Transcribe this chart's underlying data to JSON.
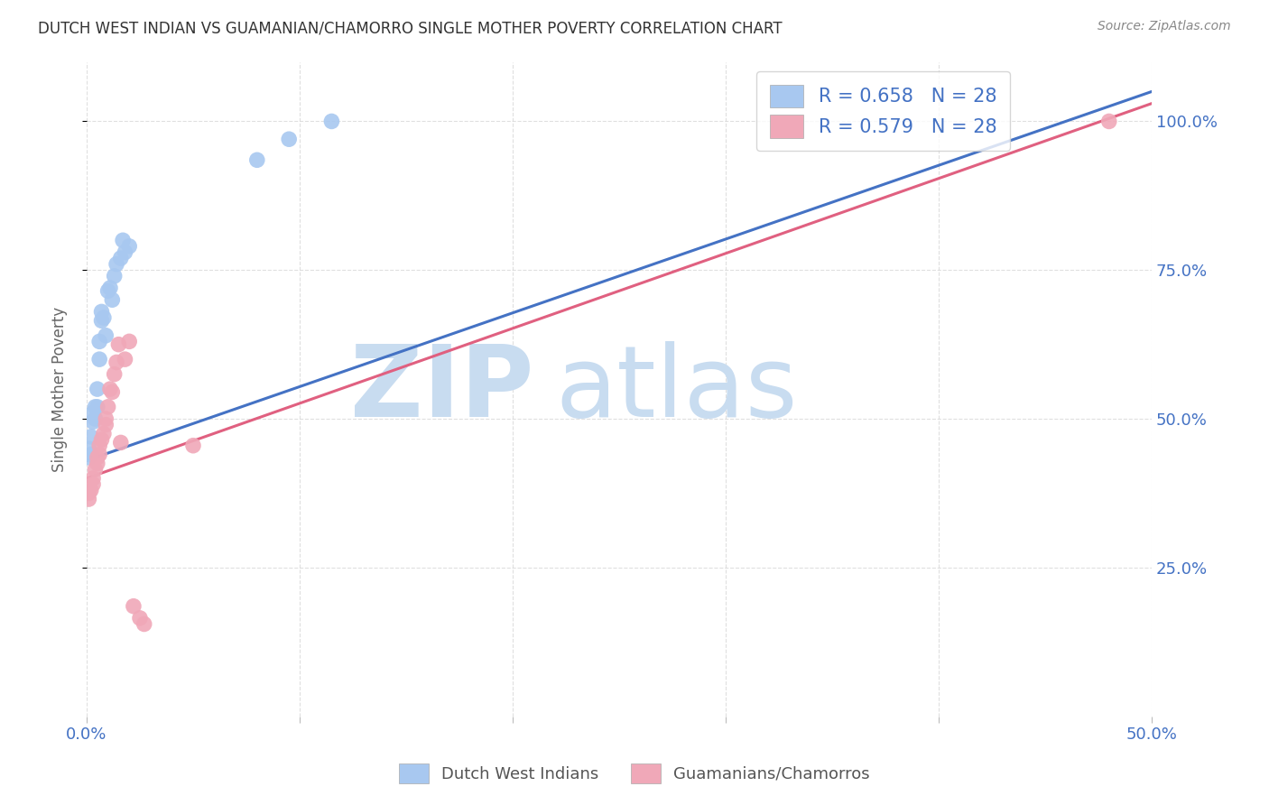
{
  "title": "DUTCH WEST INDIAN VS GUAMANIAN/CHAMORRO SINGLE MOTHER POVERTY CORRELATION CHART",
  "source": "Source: ZipAtlas.com",
  "ylabel": "Single Mother Poverty",
  "xlim": [
    0.0,
    0.5
  ],
  "ylim": [
    0.0,
    1.1
  ],
  "xtick_positions": [
    0.0,
    0.1,
    0.2,
    0.3,
    0.4,
    0.5
  ],
  "xticklabels": [
    "0.0%",
    "",
    "",
    "",
    "",
    "50.0%"
  ],
  "ytick_right_positions": [
    0.25,
    0.5,
    0.75,
    1.0
  ],
  "ytick_right_labels": [
    "25.0%",
    "50.0%",
    "75.0%",
    "100.0%"
  ],
  "blue_r": "0.658",
  "blue_n": "28",
  "pink_r": "0.579",
  "pink_n": "28",
  "blue_dot_color": "#A8C8F0",
  "pink_dot_color": "#F0A8B8",
  "blue_line_color": "#4472C4",
  "pink_line_color": "#E06080",
  "legend_label_blue": "Dutch West Indians",
  "legend_label_pink": "Guamanians/Chamorros",
  "blue_x": [
    0.001,
    0.001,
    0.002,
    0.002,
    0.003,
    0.003,
    0.004,
    0.004,
    0.005,
    0.005,
    0.006,
    0.006,
    0.007,
    0.007,
    0.008,
    0.009,
    0.01,
    0.011,
    0.012,
    0.013,
    0.014,
    0.016,
    0.017,
    0.018,
    0.02,
    0.08,
    0.095,
    0.115
  ],
  "blue_y": [
    0.435,
    0.45,
    0.44,
    0.47,
    0.495,
    0.51,
    0.5,
    0.52,
    0.52,
    0.55,
    0.6,
    0.63,
    0.665,
    0.68,
    0.67,
    0.64,
    0.715,
    0.72,
    0.7,
    0.74,
    0.76,
    0.77,
    0.8,
    0.78,
    0.79,
    0.935,
    0.97,
    1.0
  ],
  "pink_x": [
    0.001,
    0.001,
    0.002,
    0.003,
    0.003,
    0.004,
    0.005,
    0.005,
    0.006,
    0.006,
    0.007,
    0.008,
    0.009,
    0.009,
    0.01,
    0.011,
    0.012,
    0.013,
    0.014,
    0.015,
    0.016,
    0.018,
    0.02,
    0.022,
    0.025,
    0.027,
    0.05,
    0.48
  ],
  "pink_y": [
    0.365,
    0.375,
    0.38,
    0.39,
    0.4,
    0.415,
    0.425,
    0.435,
    0.44,
    0.455,
    0.465,
    0.475,
    0.49,
    0.5,
    0.52,
    0.55,
    0.545,
    0.575,
    0.595,
    0.625,
    0.46,
    0.6,
    0.63,
    0.185,
    0.165,
    0.155,
    0.455,
    1.0
  ],
  "blue_line_x0": 0.0,
  "blue_line_y0": 0.43,
  "blue_line_x1": 0.5,
  "blue_line_y1": 1.05,
  "pink_line_x0": 0.0,
  "pink_line_y0": 0.4,
  "pink_line_x1": 0.5,
  "pink_line_y1": 1.03,
  "watermark_zip_color": "#C8DCF0",
  "watermark_atlas_color": "#C8DCF0",
  "background_color": "#FFFFFF",
  "grid_color": "#D8D8D8",
  "axis_color": "#4472C4",
  "title_color": "#333333",
  "source_color": "#888888",
  "ylabel_color": "#666666"
}
